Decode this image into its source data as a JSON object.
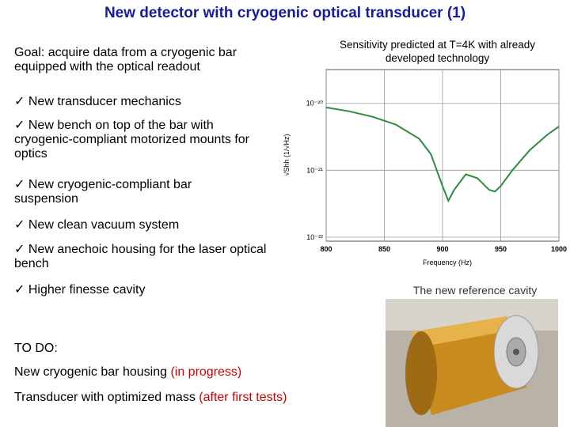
{
  "title": "New detector with cryogenic optical transducer (1)",
  "goal": "Goal: acquire data from a cryogenic bar equipped with the optical readout",
  "checklist": [
    "New transducer mechanics",
    "New bench on top of the bar with cryogenic-compliant motorized mounts for optics",
    "New cryogenic-compliant bar suspension",
    "New clean vacuum system",
    "New anechoic housing for the laser optical bench",
    "Higher finesse cavity"
  ],
  "todo": {
    "heading": "TO DO:",
    "items": [
      {
        "text": "New cryogenic bar housing",
        "status": "(in progress)"
      },
      {
        "text": "Transducer with optimized mass",
        "status": "(after first tests)"
      }
    ]
  },
  "chart_caption": "Sensitivity predicted at T=4K with already developed technology",
  "photo_caption": "The new reference cavity",
  "chart_data": {
    "type": "line",
    "x_label": "Frequency (Hz)",
    "y_label": "√Shh (1/√Hz)",
    "x": [
      800,
      820,
      840,
      860,
      880,
      890,
      900,
      905,
      910,
      920,
      930,
      940,
      945,
      950,
      960,
      975,
      990,
      1000
    ],
    "series": [
      {
        "color": "#2e8b3c",
        "values": [
          8.7e-21,
          7.6e-21,
          6.3e-21,
          4.8e-21,
          2.95e-21,
          1.74e-21,
          5.8e-22,
          3.5e-22,
          5.1e-22,
          8.7e-22,
          7.6e-22,
          5.1e-22,
          4.8e-22,
          5.8e-22,
          1e-21,
          2e-21,
          3.4e-21,
          4.5e-21
        ]
      }
    ],
    "xlim": [
      800,
      1000
    ],
    "xticks": [
      800,
      850,
      900,
      950,
      1000
    ],
    "ylim": [
      8.7e-23,
      3.2e-20
    ],
    "log_y": true,
    "yticks": [
      {
        "value": 1e-20,
        "label": "10⁻²⁰"
      },
      {
        "value": 1e-21,
        "label": "10⁻²¹"
      },
      {
        "value": 1e-22,
        "label": "10⁻²²"
      }
    ],
    "grid": true
  }
}
